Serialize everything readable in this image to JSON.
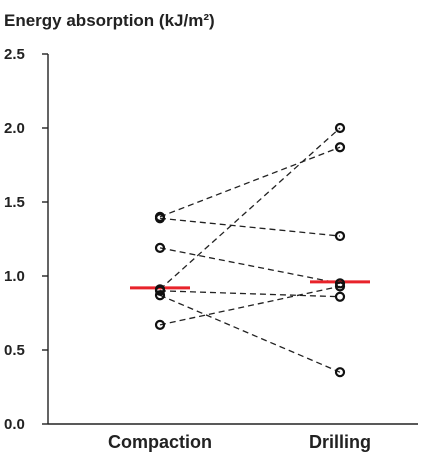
{
  "chart_data": {
    "type": "scatter",
    "title": "Energy absorption (kJ/m²)",
    "xlabel": "",
    "ylabel": "",
    "categories": [
      "Compaction",
      "Drilling"
    ],
    "ylim": [
      0,
      2.5
    ],
    "yticks": [
      "0.0",
      "0.5",
      "1.0",
      "1.5",
      "2.0",
      "2.5"
    ],
    "grid": false,
    "legend": "none",
    "pairs": [
      {
        "compaction": 0.67,
        "drilling": 0.93
      },
      {
        "compaction": 0.87,
        "drilling": 0.35
      },
      {
        "compaction": 0.9,
        "drilling": 0.86
      },
      {
        "compaction": 0.91,
        "drilling": 2.0
      },
      {
        "compaction": 1.19,
        "drilling": 0.95
      },
      {
        "compaction": 1.39,
        "drilling": 1.27
      },
      {
        "compaction": 1.4,
        "drilling": 1.87
      }
    ],
    "medians": {
      "compaction": 0.92,
      "drilling": 0.96
    },
    "colors": {
      "marker": "#111111",
      "line": "#222222",
      "median": "#e8232a",
      "axis": "#222222"
    }
  }
}
